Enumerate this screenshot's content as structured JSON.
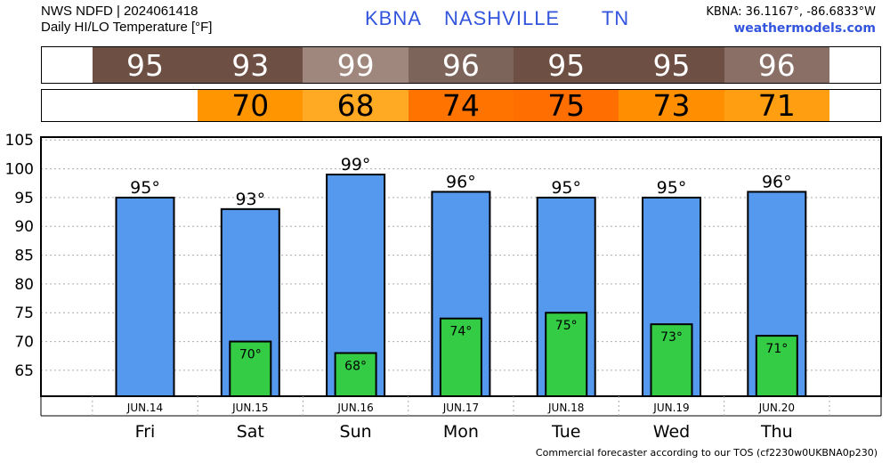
{
  "header": {
    "line1": "NWS NDFD | 2024061418",
    "line2": "Daily HI/LO Temperature [°F]",
    "station_id": "KBNA",
    "city": "NASHVILLE",
    "state": "TN",
    "coords": "KBNA: 36.1167°, -86.6833°W",
    "site": "weathermodels.com"
  },
  "colors": {
    "hi_bar": "#5599ee",
    "lo_bar": "#33cc44",
    "hi_strip_cells": [
      "#6e4f44",
      "#6e4f44",
      "#a0877d",
      "#7d645b",
      "#6e4f44",
      "#6e4f44",
      "#8a6f66"
    ],
    "lo_strip_cells": [
      "",
      "#ff9500",
      "#ffaa22",
      "#ff7300",
      "#ff6e00",
      "#ff8f00",
      "#ff9e11"
    ]
  },
  "hi_strip": [
    "95",
    "93",
    "99",
    "96",
    "95",
    "95",
    "96"
  ],
  "lo_strip": [
    "",
    "70",
    "68",
    "74",
    "75",
    "73",
    "71"
  ],
  "chart_data": {
    "type": "bar",
    "categories": [
      "Fri",
      "Sat",
      "Sun",
      "Mon",
      "Tue",
      "Wed",
      "Thu"
    ],
    "dates": [
      "JUN.14",
      "JUN.15",
      "JUN.16",
      "JUN.17",
      "JUN.18",
      "JUN.19",
      "JUN.20"
    ],
    "series": [
      {
        "values": [
          95,
          93,
          99,
          96,
          95,
          95,
          96
        ],
        "labels": [
          "95°",
          "93°",
          "99°",
          "96°",
          "95°",
          "95°",
          "96°"
        ]
      },
      {
        "values": [
          null,
          70,
          68,
          74,
          75,
          73,
          71
        ],
        "labels": [
          "",
          "70°",
          "68°",
          "74°",
          "75°",
          "73°",
          "71°"
        ]
      }
    ],
    "y_ticks": [
      "105",
      "100",
      "95",
      "90",
      "85",
      "80",
      "75",
      "70",
      "65"
    ],
    "ylim": [
      60.5,
      105.5
    ],
    "grid": true
  },
  "footer": "Commercial forecaster according to our TOS (cf2230w0UKBNA0p230)"
}
